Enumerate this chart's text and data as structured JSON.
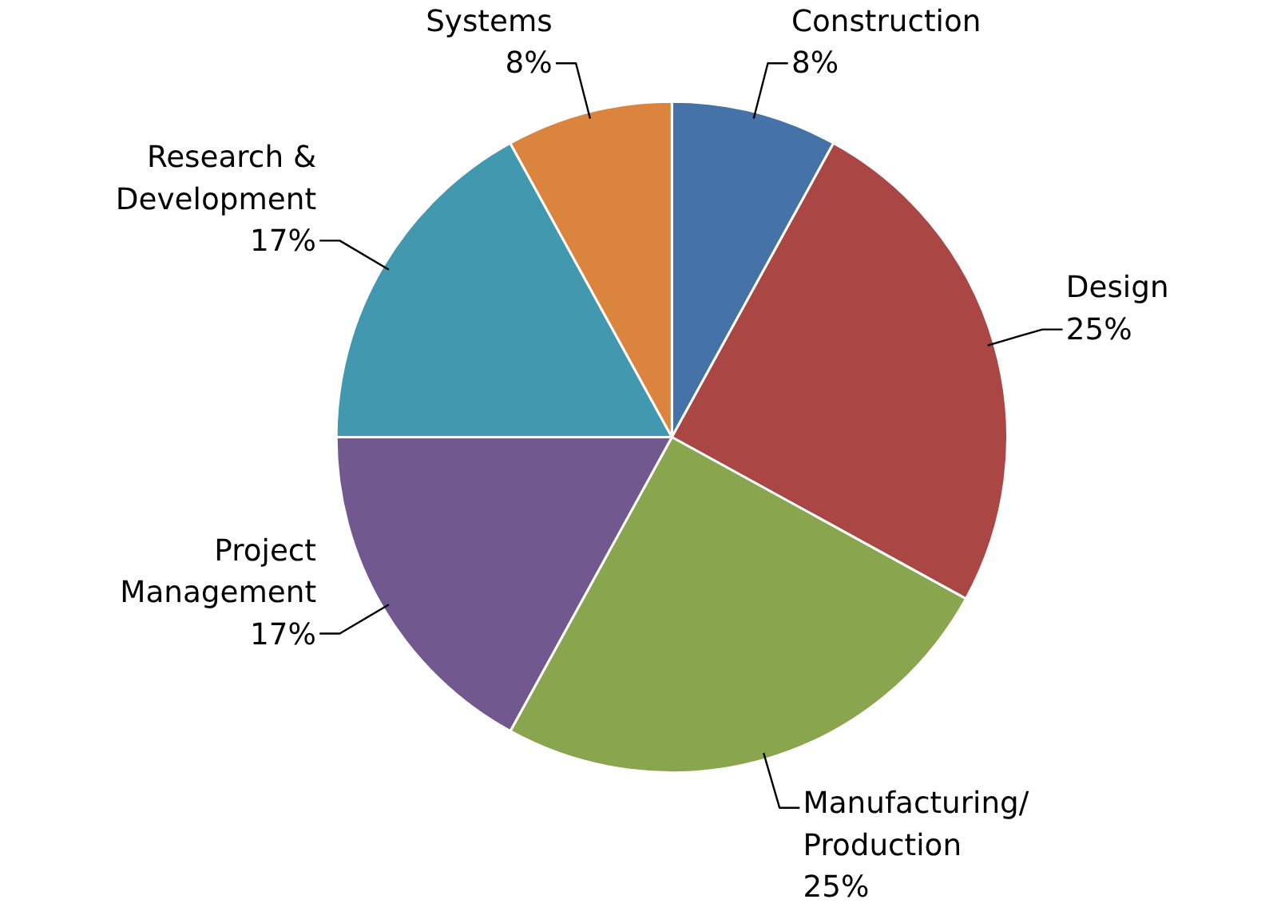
{
  "chart_data": {
    "type": "pie",
    "categories": [
      "Construction",
      "Design",
      "Manufacturing/ Production",
      "Project Management",
      "Research & Development",
      "Systems"
    ],
    "values": [
      8,
      25,
      25,
      17,
      17,
      8
    ],
    "colors": [
      "#4573a7",
      "#aa4644",
      "#89a54e",
      "#71588f",
      "#4298af",
      "#db843d"
    ],
    "value_labels": [
      "8%",
      "25%",
      "25%",
      "17%",
      "17%",
      "8%"
    ]
  }
}
